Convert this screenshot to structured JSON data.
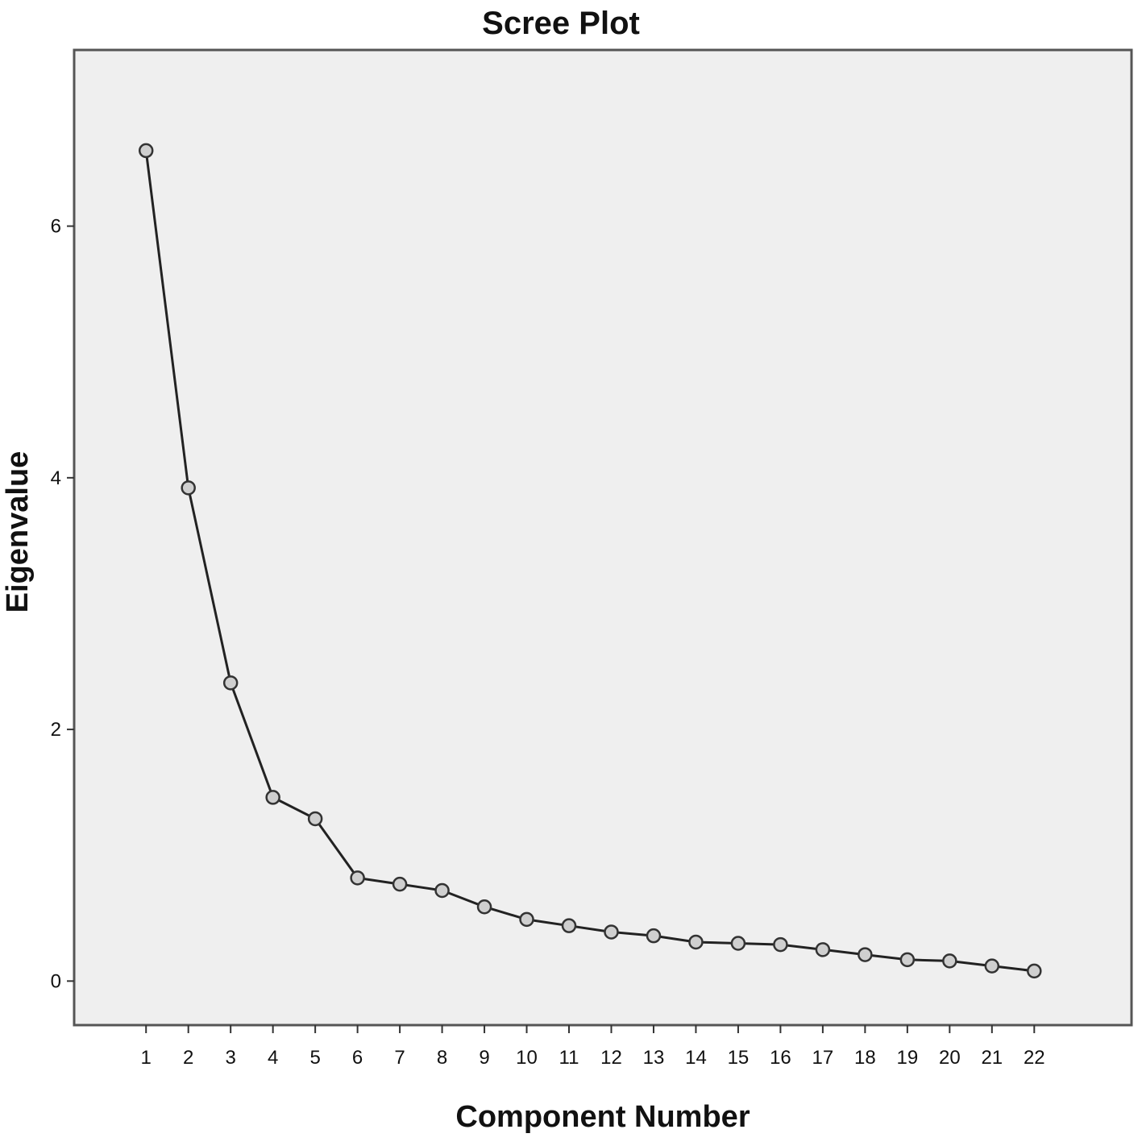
{
  "chart_data": {
    "type": "line",
    "title": "Scree Plot",
    "xlabel": "Component Number",
    "ylabel": "Eigenvalue",
    "x": [
      1,
      2,
      3,
      4,
      5,
      6,
      7,
      8,
      9,
      10,
      11,
      12,
      13,
      14,
      15,
      16,
      17,
      18,
      19,
      20,
      21,
      22
    ],
    "x_tick_labels": [
      "1",
      "2",
      "3",
      "4",
      "5",
      "6",
      "7",
      "8",
      "9",
      "10",
      "11",
      "12",
      "13",
      "14",
      "15",
      "16",
      "17",
      "18",
      "19",
      "20",
      "21",
      "22"
    ],
    "y_ticks": [
      0,
      2,
      4,
      6
    ],
    "y_tick_labels": [
      "0",
      "2",
      "4",
      "6"
    ],
    "ylim": [
      -0.35,
      7.4
    ],
    "xlim": [
      -0.7,
      24.3
    ],
    "series": [
      {
        "values": [
          6.6,
          3.92,
          2.37,
          1.46,
          1.29,
          0.82,
          0.77,
          0.72,
          0.59,
          0.49,
          0.44,
          0.39,
          0.36,
          0.31,
          0.3,
          0.29,
          0.25,
          0.21,
          0.17,
          0.16,
          0.12,
          0.08
        ]
      }
    ],
    "grid": false,
    "legend": "none",
    "colors": {
      "plot_background": "#efefef",
      "frame": "#555555",
      "line": "#222222",
      "marker_fill": "#cfcfcf",
      "marker_stroke": "#333333"
    }
  }
}
